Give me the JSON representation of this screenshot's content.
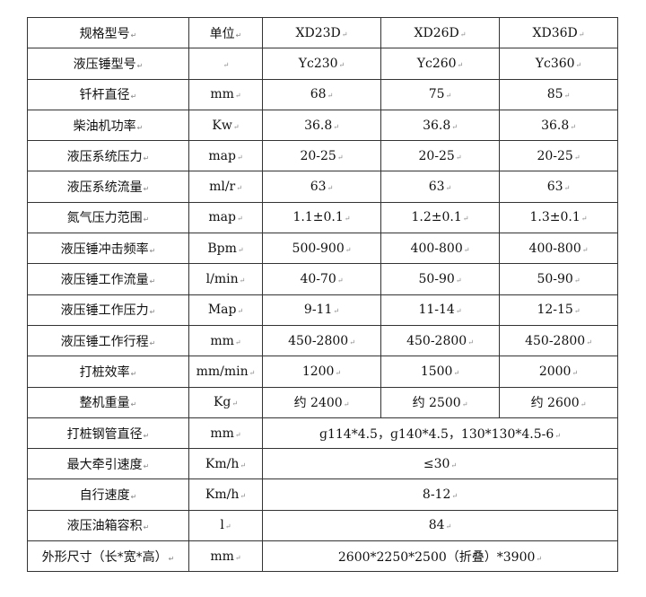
{
  "header": {
    "label": "规格型号",
    "unit": "单位",
    "models": [
      "XD23D",
      "XD26D",
      "XD36D"
    ]
  },
  "rows": [
    {
      "label": "液压锤型号",
      "unit": "",
      "values": [
        "Yc230",
        "Yc260",
        "Yc360"
      ]
    },
    {
      "label": "钎杆直径",
      "unit": "mm",
      "values": [
        "68",
        "75",
        "85"
      ]
    },
    {
      "label": "柴油机功率",
      "unit": "Kw",
      "values": [
        "36.8",
        "36.8",
        "36.8"
      ]
    },
    {
      "label": "液压系统压力",
      "unit": "map",
      "values": [
        "20-25",
        "20-25",
        "20-25"
      ]
    },
    {
      "label": "液压系统流量",
      "unit": "ml/r",
      "values": [
        "63",
        "63",
        "63"
      ]
    },
    {
      "label": "氮气压力范围",
      "unit": "map",
      "values": [
        "1.1±0.1",
        "1.2±0.1",
        "1.3±0.1"
      ]
    },
    {
      "label": "液压锤冲击频率",
      "unit": "Bpm",
      "values": [
        "500-900",
        "400-800",
        "400-800"
      ]
    },
    {
      "label": "液压锤工作流量",
      "unit": "l/min",
      "values": [
        "40-70",
        "50-90",
        "50-90"
      ]
    },
    {
      "label": "液压锤工作压力",
      "unit": "Map",
      "values": [
        "9-11",
        "11-14",
        "12-15"
      ]
    },
    {
      "label": "液压锤工作行程",
      "unit": "mm",
      "values": [
        "450-2800",
        "450-2800",
        "450-2800"
      ]
    },
    {
      "label": "打桩效率",
      "unit": "mm/min",
      "values": [
        "1200",
        "1500",
        "2000"
      ]
    },
    {
      "label": "整机重量",
      "unit": "Kg",
      "values": [
        "约 2400",
        "约 2500",
        "约 2600"
      ]
    }
  ],
  "merged_rows": [
    {
      "label": "打桩钢管直径",
      "unit": "mm",
      "value": "ɡ114*4.5，ɡ140*4.5，130*130*4.5-6"
    },
    {
      "label": "最大牵引速度",
      "unit": "Km/h",
      "value": "≤30"
    },
    {
      "label": "自行速度",
      "unit": "Km/h",
      "value": "8-12"
    },
    {
      "label": "液压油箱容积",
      "unit": "l",
      "value": "84"
    },
    {
      "label": "外形尺寸（长*宽*高）",
      "unit": "mm",
      "value": "2600*2250*2500（折叠）*3900"
    }
  ]
}
